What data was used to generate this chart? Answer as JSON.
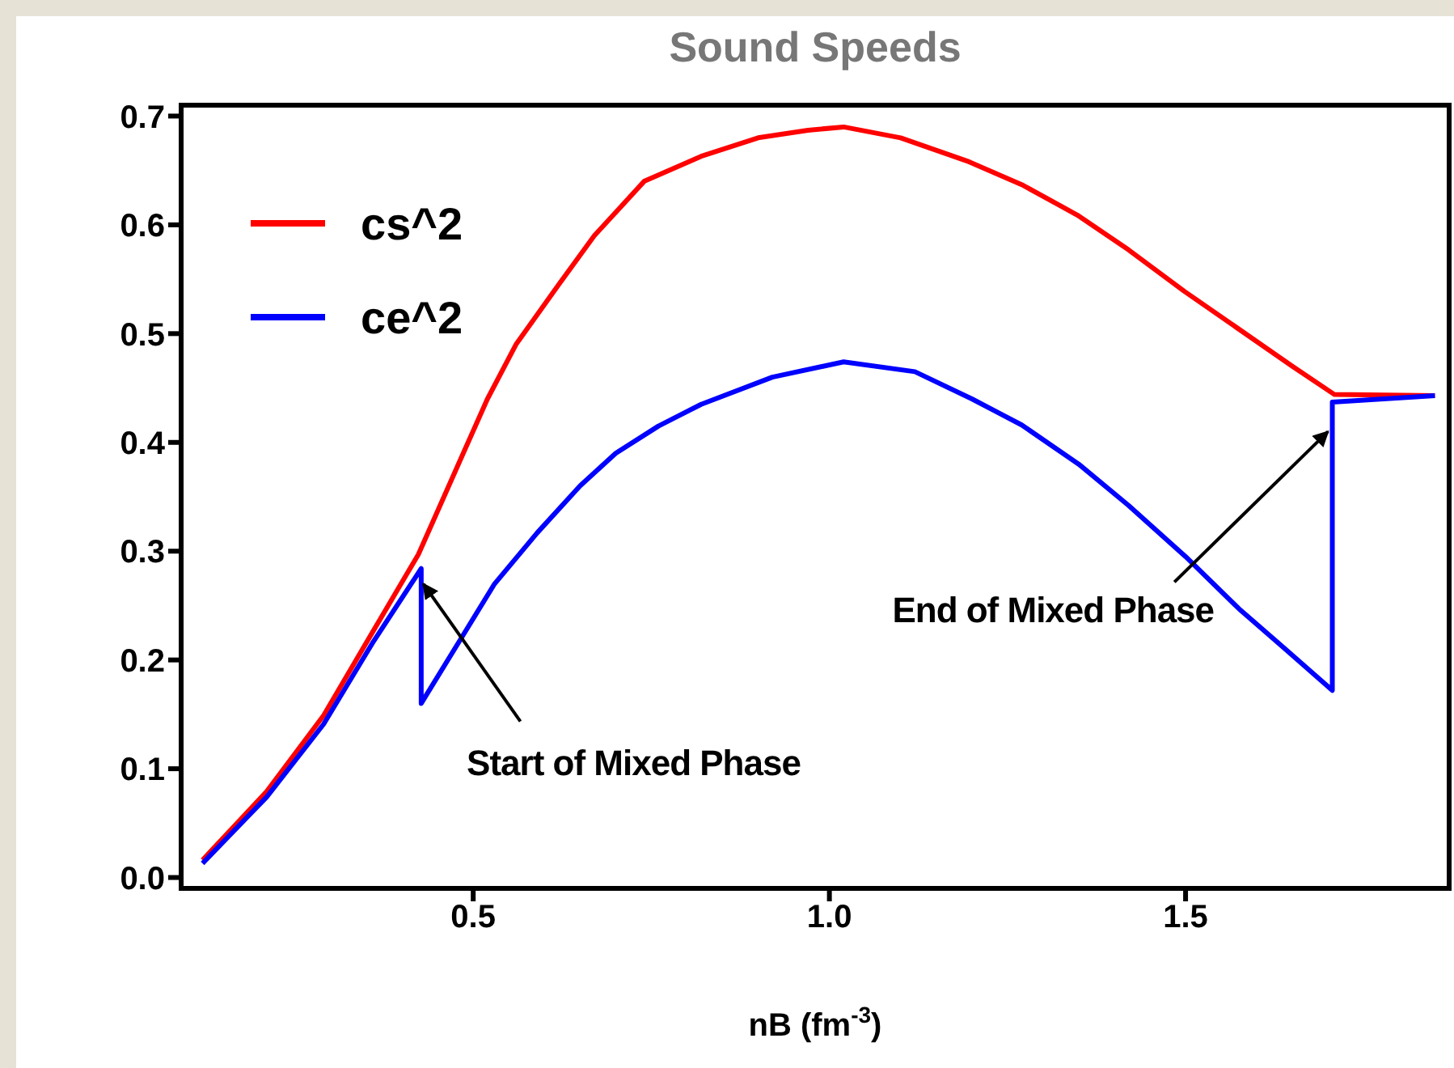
{
  "chart_data": {
    "type": "line",
    "title": "Sound Speeds",
    "xlabel": "nB (fm$^{-3}$)",
    "xlim": [
      0.09,
      1.87
    ],
    "ylim": [
      -0.01,
      0.71
    ],
    "xticks": [
      0.5,
      {
        "value": 1,
        "label": "1.0"
      },
      1.5
    ],
    "yticks": [
      {
        "value": 0,
        "label": "0.0"
      },
      0.1,
      0.2,
      0.3,
      0.4,
      0.5,
      0.6,
      0.7
    ],
    "legend": "top left",
    "marker": "none",
    "line_style": "solid",
    "series": [
      {
        "name": "cs^2",
        "color": "#ff0000",
        "x": [
          0.12,
          0.21,
          0.29,
          0.36,
          0.423,
          0.486,
          0.52,
          0.56,
          0.62,
          0.67,
          0.74,
          0.82,
          0.9,
          0.97,
          1.02,
          1.1,
          1.196,
          1.27,
          1.348,
          1.42,
          1.498,
          1.65,
          1.709,
          1.85
        ],
        "values": [
          0.016,
          0.079,
          0.149,
          0.227,
          0.297,
          0.39,
          0.44,
          0.49,
          0.545,
          0.59,
          0.64,
          0.663,
          0.68,
          0.687,
          0.69,
          0.68,
          0.658,
          0.637,
          0.609,
          0.577,
          0.539,
          0.47,
          0.444,
          0.443
        ]
      },
      {
        "name": "ce^2",
        "color": "#0000ff",
        "x": [
          0.12,
          0.21,
          0.29,
          0.36,
          0.427,
          0.427,
          0.486,
          0.53,
          0.59,
          0.65,
          0.7,
          0.76,
          0.82,
          0.92,
          1.02,
          1.12,
          1.2,
          1.27,
          1.35,
          1.42,
          1.5,
          1.575,
          1.64,
          1.706,
          1.706,
          1.85
        ],
        "values": [
          0.013,
          0.074,
          0.141,
          0.217,
          0.284,
          0.16,
          0.223,
          0.27,
          0.317,
          0.36,
          0.39,
          0.415,
          0.435,
          0.46,
          0.474,
          0.465,
          0.44,
          0.416,
          0.38,
          0.342,
          0.295,
          0.247,
          0.21,
          0.172,
          0.437,
          0.443
        ]
      }
    ],
    "annotations": [
      {
        "text": "Start of Mixed Phase",
        "x": 0.43,
        "y": 0.27
      },
      {
        "text": "End of Mixed Phase",
        "x": 1.7,
        "y": 0.41
      }
    ]
  }
}
